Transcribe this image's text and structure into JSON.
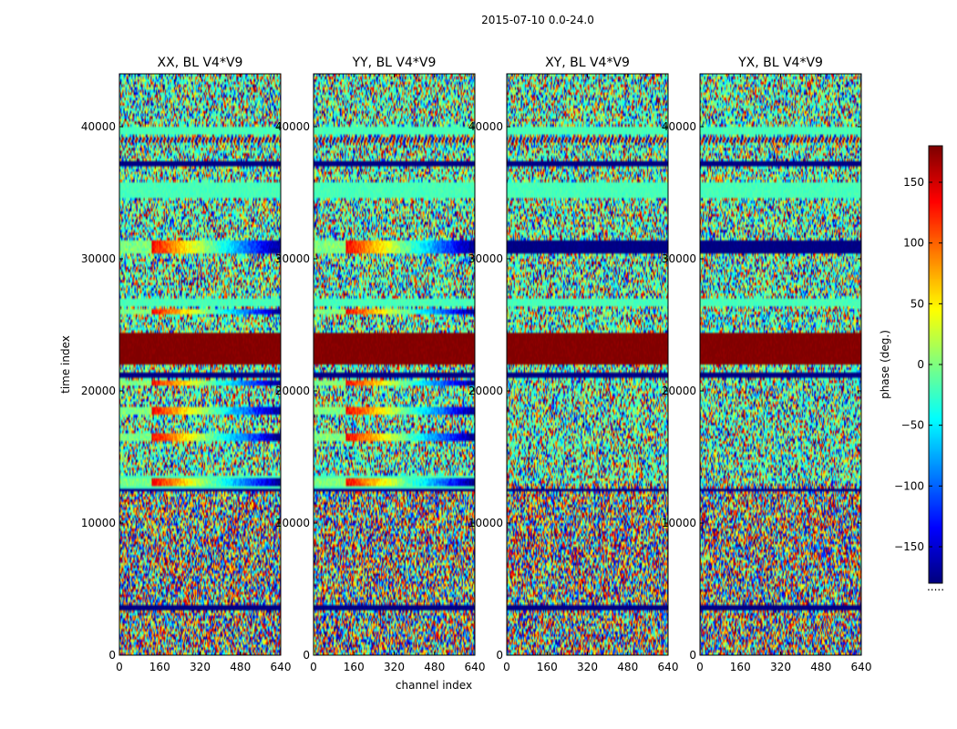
{
  "figure_title": "2015-07-10 0.0-24.0",
  "chart_data": {
    "type": "heatmap",
    "title": "2015-07-10 0.0-24.0",
    "xlabel": "channel index",
    "ylabel": "time index",
    "xlim": [
      0,
      640
    ],
    "ylim": [
      0,
      44000
    ],
    "xticks": [
      0,
      160,
      320,
      480,
      640
    ],
    "yticks": [
      0,
      10000,
      20000,
      30000,
      40000
    ],
    "colorbar": {
      "label": "phase (deg.)",
      "vmin": -180,
      "vmax": 180,
      "ticks": [
        -150,
        -100,
        -50,
        0,
        50,
        100,
        150
      ],
      "colormap": "jet",
      "offset_text": "....."
    },
    "panels": [
      {
        "name": "xx",
        "title": "XX, BL V4*V9"
      },
      {
        "name": "yy",
        "title": "YY, BL V4*V9"
      },
      {
        "name": "xy",
        "title": "XY, BL V4*V9"
      },
      {
        "name": "yx",
        "title": "YX, BL V4*V9"
      }
    ],
    "time_bands": [
      {
        "t0": 22000,
        "t1": 24300,
        "pattern": "solid",
        "phase": 180,
        "panels": [
          "xx",
          "yy",
          "xy",
          "yx"
        ]
      },
      {
        "t0": 30500,
        "t1": 31300,
        "pattern": "solid",
        "phase": -180,
        "panels": [
          "xy",
          "yx"
        ]
      },
      {
        "t0": 30500,
        "t1": 31300,
        "pattern": "sweep",
        "phase": 0,
        "panels": [
          "xx",
          "yy"
        ]
      },
      {
        "t0": 34700,
        "t1": 35800,
        "pattern": "solid",
        "phase": -20,
        "panels": [
          "xx",
          "yy",
          "xy",
          "yx"
        ]
      },
      {
        "t0": 26500,
        "t1": 27000,
        "pattern": "solid",
        "phase": -20,
        "panels": [
          "xx",
          "yy",
          "xy",
          "yx"
        ]
      },
      {
        "t0": 25800,
        "t1": 26200,
        "pattern": "sweep",
        "phase": 0,
        "panels": [
          "xx",
          "yy"
        ]
      },
      {
        "t0": 20400,
        "t1": 20800,
        "pattern": "sweep",
        "phase": 0,
        "panels": [
          "xx",
          "yy"
        ]
      },
      {
        "t0": 18300,
        "t1": 18800,
        "pattern": "sweep",
        "phase": 0,
        "panels": [
          "xx",
          "yy"
        ]
      },
      {
        "t0": 16200,
        "t1": 16700,
        "pattern": "sweep",
        "phase": 0,
        "panels": [
          "xx",
          "yy"
        ]
      },
      {
        "t0": 12800,
        "t1": 13400,
        "pattern": "sweep",
        "phase": 0,
        "panels": [
          "xx",
          "yy"
        ]
      },
      {
        "t0": 12600,
        "t1": 13500,
        "pattern": "solid",
        "phase": -20,
        "panels": [
          "xx",
          "yy"
        ]
      },
      {
        "t0": 21000,
        "t1": 21300,
        "pattern": "solid",
        "phase": -180,
        "panels": [
          "xx",
          "yy",
          "xy",
          "yx"
        ]
      },
      {
        "t0": 12400,
        "t1": 12600,
        "pattern": "solid",
        "phase": -180,
        "panels": [
          "xx",
          "yy",
          "xy",
          "yx"
        ]
      },
      {
        "t0": 38800,
        "t1": 39200,
        "pattern": "fringe",
        "phase": 0,
        "panels": [
          "xx",
          "yy",
          "xy",
          "yx"
        ]
      },
      {
        "t0": 39500,
        "t1": 40000,
        "pattern": "solid",
        "phase": -20,
        "panels": [
          "xx",
          "yy",
          "xy",
          "yx"
        ]
      },
      {
        "t0": 37100,
        "t1": 37300,
        "pattern": "solid",
        "phase": -180,
        "panels": [
          "xx",
          "yy",
          "xy",
          "yx"
        ]
      },
      {
        "t0": 3500,
        "t1": 3700,
        "pattern": "solid",
        "phase": -180,
        "panels": [
          "xx",
          "yy",
          "xy",
          "yx"
        ]
      }
    ]
  }
}
